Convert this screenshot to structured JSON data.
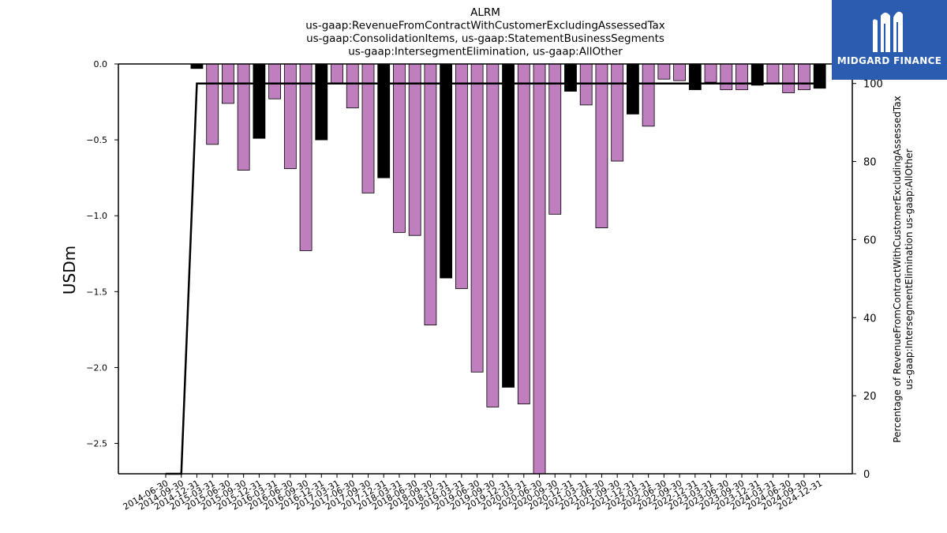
{
  "chart_data": {
    "type": "bar",
    "title": [
      "ALRM",
      "us-gaap:RevenueFromContractWithCustomerExcludingAssessedTax",
      "us-gaap:ConsolidationItems, us-gaap:StatementBusinessSegments",
      "us-gaap:IntersegmentElimination, us-gaap:AllOther"
    ],
    "ylabel_left": "USDm",
    "ylabel_right": [
      "Percentage of RevenueFromContractWithCustomerExcludingAssessedTax",
      "us-gaap:IntersegmentElimination us-gaap:AllOther"
    ],
    "ylim_left": [
      -2.7,
      0.0
    ],
    "yticks_left": [
      "0.0",
      "−0.5",
      "−1.0",
      "−1.5",
      "−2.0",
      "−2.5"
    ],
    "ylim_right": [
      0,
      105
    ],
    "yticks_right": [
      "0",
      "20",
      "40",
      "60",
      "80",
      "100"
    ],
    "categories": [
      "2014-06-30",
      "2014-09-30",
      "2014-12-31",
      "2015-03-31",
      "2015-06-30",
      "2015-09-30",
      "2015-12-31",
      "2016-03-31",
      "2016-06-30",
      "2016-09-30",
      "2016-12-31",
      "2017-03-31",
      "2017-06-30",
      "2017-09-30",
      "2017-12-31",
      "2018-03-31",
      "2018-06-30",
      "2018-09-30",
      "2018-12-31",
      "2019-03-31",
      "2019-06-30",
      "2019-09-30",
      "2019-12-31",
      "2020-03-31",
      "2020-06-30",
      "2020-09-30",
      "2020-12-31",
      "2021-03-31",
      "2021-06-30",
      "2021-09-30",
      "2021-12-31",
      "2022-03-31",
      "2022-06-30",
      "2022-09-30",
      "2022-12-31",
      "2023-03-31",
      "2023-06-30",
      "2023-09-30",
      "2023-12-31",
      "2024-03-31",
      "2024-06-30",
      "2024-09-30",
      "2024-12-31"
    ],
    "series": [
      {
        "kind": "bar",
        "values": [
          0.0,
          0.0,
          -0.03,
          -0.53,
          -0.26,
          -0.7,
          -0.49,
          -0.23,
          -0.69,
          -1.23,
          -0.5,
          -0.13,
          -0.29,
          -0.85,
          -0.75,
          -1.11,
          -1.13,
          -1.72,
          -1.41,
          -1.48,
          -2.03,
          -2.26,
          -2.13,
          -2.24,
          -2.7,
          -0.99,
          -0.18,
          -0.27,
          -1.08,
          -0.64,
          -0.33,
          -0.41,
          -0.1,
          -0.11,
          -0.17,
          -0.12,
          -0.17,
          -0.17,
          -0.14,
          -0.13,
          -0.19,
          -0.17,
          -0.16
        ],
        "highlight": [
          false,
          false,
          true,
          false,
          false,
          false,
          true,
          false,
          false,
          false,
          true,
          false,
          false,
          false,
          true,
          false,
          false,
          false,
          true,
          false,
          false,
          false,
          true,
          false,
          false,
          false,
          true,
          false,
          false,
          false,
          true,
          false,
          false,
          false,
          true,
          false,
          false,
          false,
          true,
          false,
          false,
          false,
          true
        ]
      },
      {
        "kind": "line",
        "axis": "right",
        "values": [
          0,
          0,
          100,
          100,
          100,
          100,
          100,
          100,
          100,
          100,
          100,
          100,
          100,
          100,
          100,
          100,
          100,
          100,
          100,
          100,
          100,
          100,
          100,
          100,
          100,
          100,
          100,
          100,
          100,
          100,
          100,
          100,
          100,
          100,
          100,
          100,
          100,
          100,
          100,
          100,
          100,
          100,
          100
        ]
      }
    ],
    "colors": {
      "bar": "#bf7fbf",
      "bar_highlight": "#000000",
      "line": "#000000"
    },
    "grid": false
  },
  "logo": {
    "text": "MIDGARD FINANCE",
    "icon": "midgard-logo-icon",
    "bg": "#2a5db0"
  }
}
